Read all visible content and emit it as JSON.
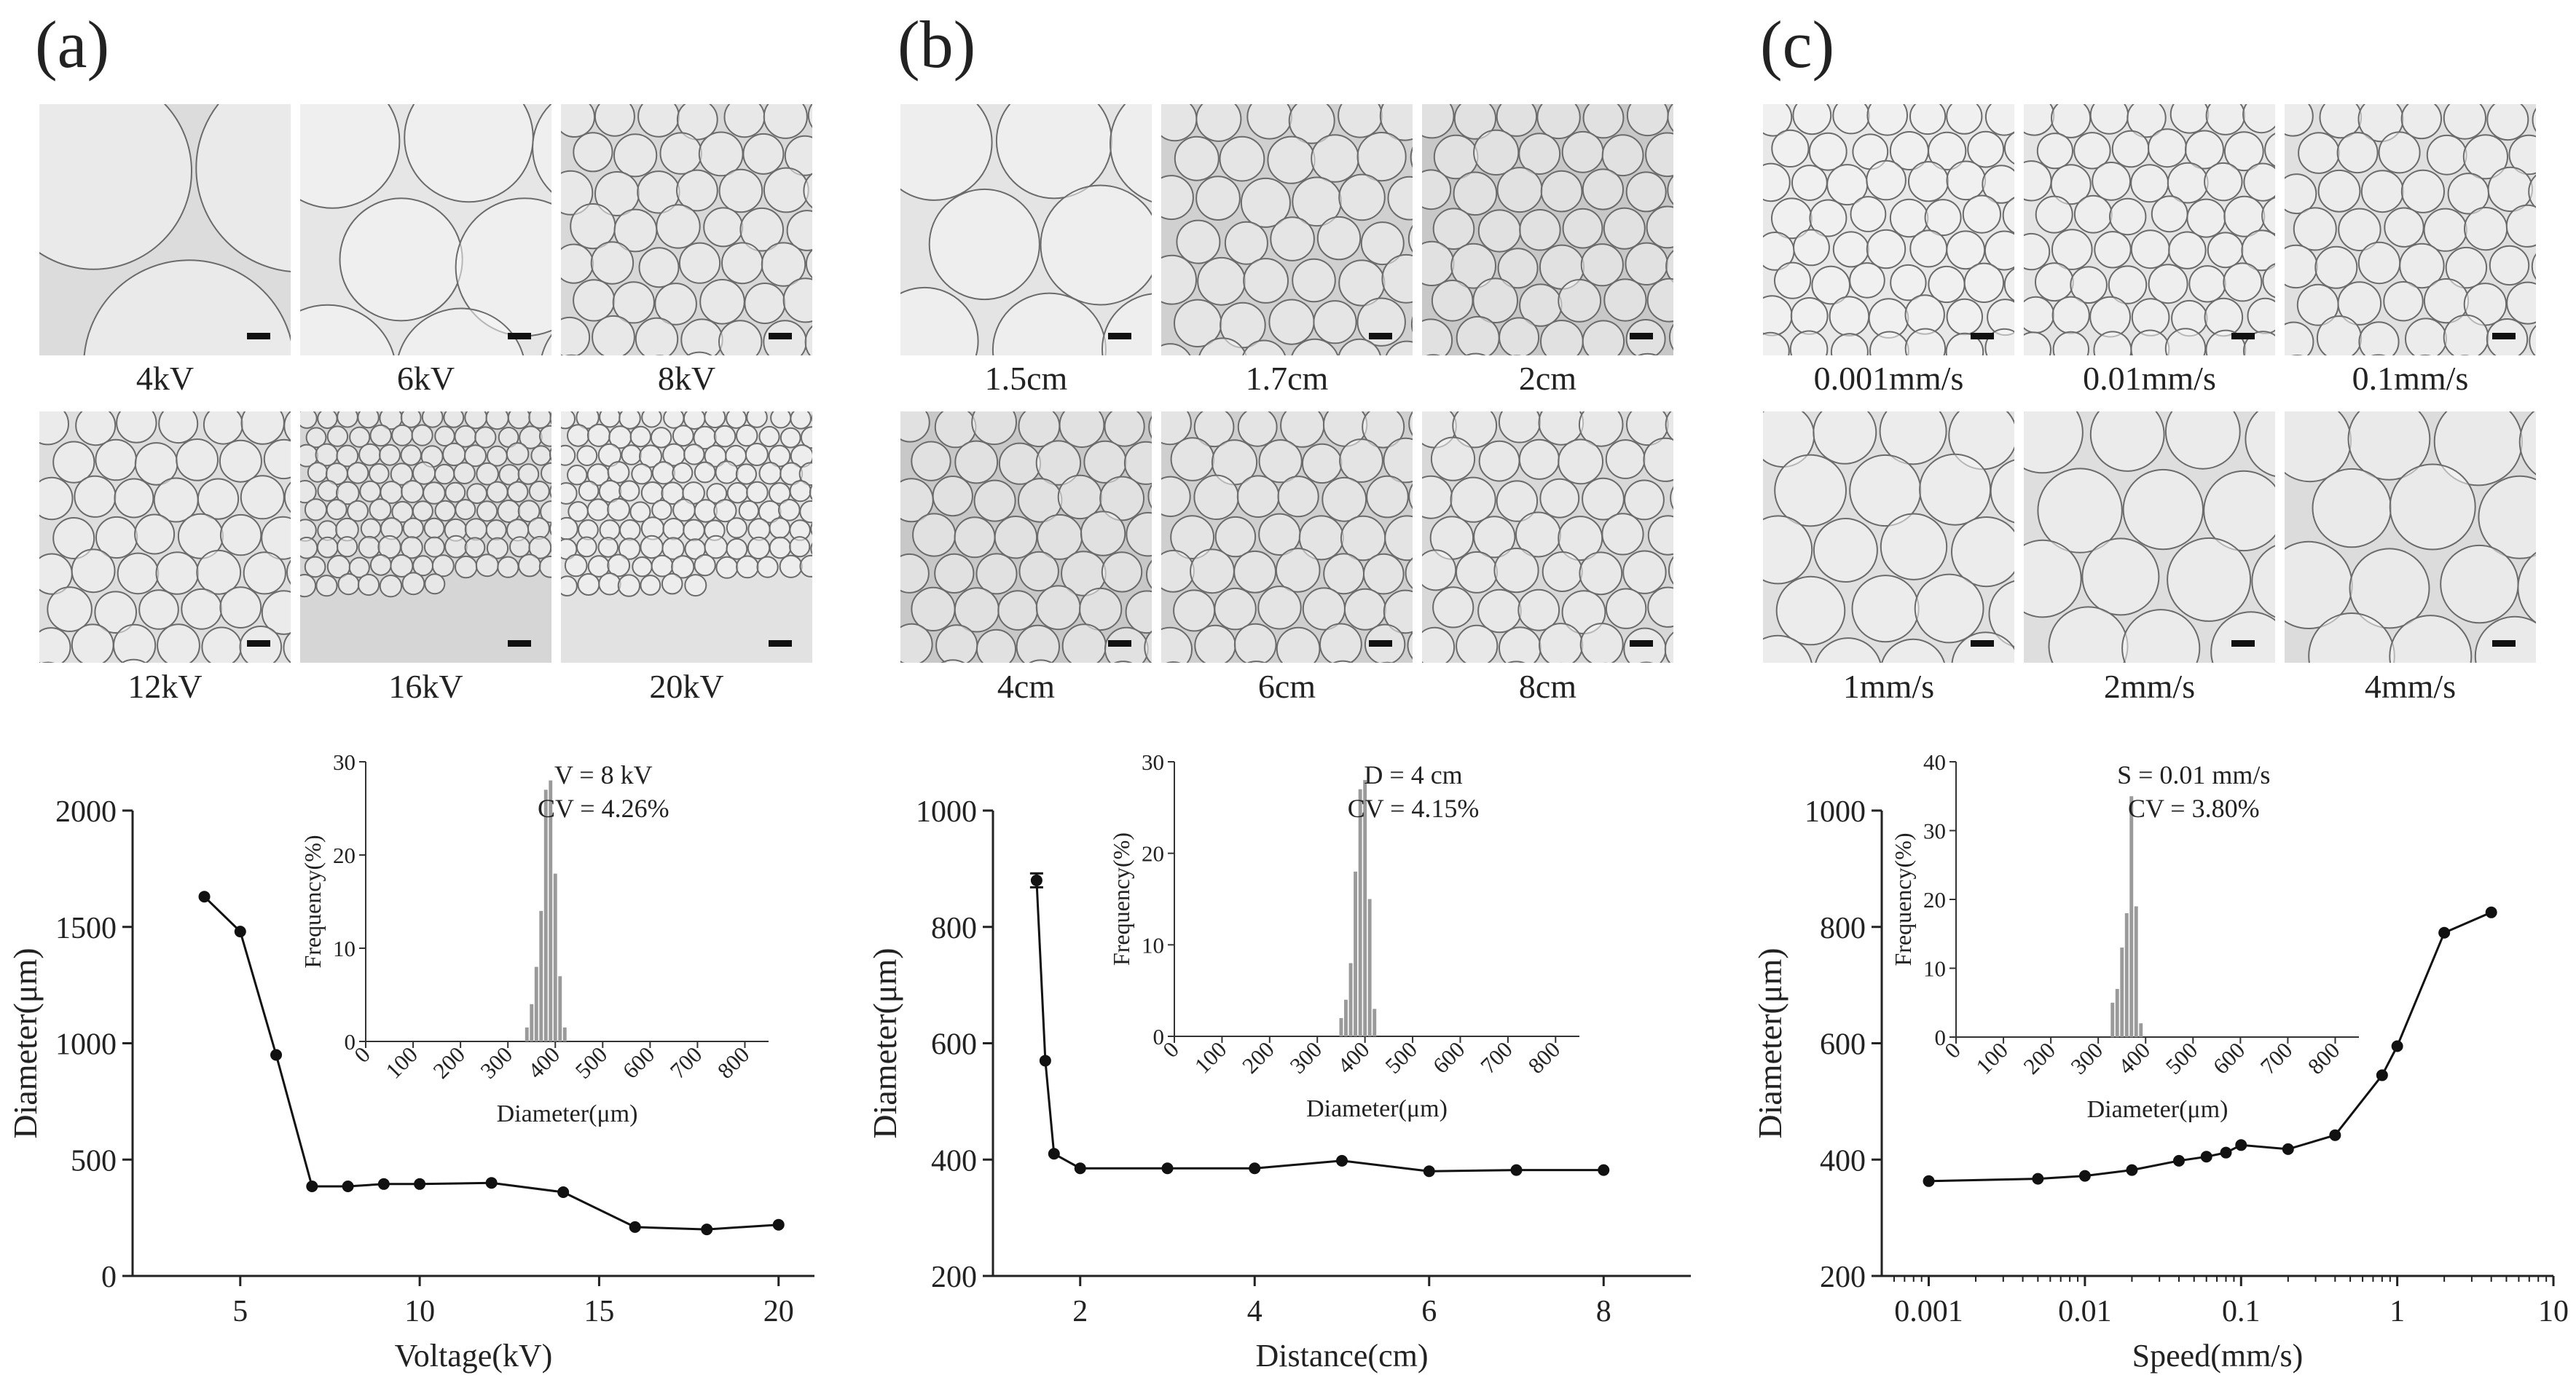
{
  "panels": [
    {
      "label": "(a)",
      "images": [
        {
          "caption": "4kV",
          "size": 1.0,
          "tone": "#dcdcdc"
        },
        {
          "caption": "6kV",
          "size": 0.62,
          "tone": "#e6e6e6"
        },
        {
          "caption": "8kV",
          "size": 0.2,
          "tone": "#d8d8d8"
        },
        {
          "caption": "12kV",
          "size": 0.2,
          "tone": "#dedede"
        },
        {
          "caption": "16kV",
          "size": 0.1,
          "tone": "#d6d6d6"
        },
        {
          "caption": "20kV",
          "size": 0.1,
          "tone": "#e2e2e2"
        }
      ]
    },
    {
      "label": "(b)",
      "images": [
        {
          "caption": "1.5cm",
          "size": 0.55,
          "tone": "#e4e4e4"
        },
        {
          "caption": "1.7cm",
          "size": 0.22,
          "tone": "#d0d0d0"
        },
        {
          "caption": "2cm",
          "size": 0.2,
          "tone": "#c8c8c8"
        },
        {
          "caption": "4cm",
          "size": 0.2,
          "tone": "#c8c8c8"
        },
        {
          "caption": "6cm",
          "size": 0.2,
          "tone": "#cfcfcf"
        },
        {
          "caption": "8cm",
          "size": 0.2,
          "tone": "#d8d8d8"
        }
      ]
    },
    {
      "label": "(c)",
      "images": [
        {
          "caption": "0.001mm/s",
          "size": 0.18,
          "tone": "#e8e8e8"
        },
        {
          "caption": "0.01mm/s",
          "size": 0.18,
          "tone": "#e4e4e4"
        },
        {
          "caption": "0.1mm/s",
          "size": 0.2,
          "tone": "#e0e0e0"
        },
        {
          "caption": "1mm/s",
          "size": 0.32,
          "tone": "#e0e0e0"
        },
        {
          "caption": "2mm/s",
          "size": 0.38,
          "tone": "#dedede"
        },
        {
          "caption": "4mm/s",
          "size": 0.4,
          "tone": "#dcdcdc"
        }
      ]
    }
  ],
  "chart_data": [
    {
      "type": "line",
      "xlabel": "Voltage(kV)",
      "ylabel": "Diameter(μm)",
      "xlim": [
        2,
        21
      ],
      "ylim": [
        0,
        2000
      ],
      "xticks": [
        5,
        10,
        15,
        20
      ],
      "yticks": [
        0,
        500,
        1000,
        1500,
        2000
      ],
      "x": [
        4,
        5,
        6,
        7,
        8,
        9,
        10,
        12,
        14,
        16,
        18,
        20
      ],
      "y": [
        1630,
        1480,
        950,
        385,
        385,
        395,
        395,
        400,
        360,
        210,
        200,
        220
      ],
      "inset": {
        "type": "bar",
        "xlabel": "Diameter(μm)",
        "ylabel": "Frequency(%)",
        "xlim": [
          0,
          850
        ],
        "ylim": [
          0,
          30
        ],
        "xticks": [
          0,
          100,
          200,
          300,
          400,
          500,
          600,
          700,
          800
        ],
        "yticks": [
          0,
          10,
          20,
          30
        ],
        "annotation": [
          "V = 8 kV",
          "CV = 4.26%"
        ],
        "x": [
          340,
          350,
          360,
          370,
          380,
          390,
          400,
          410,
          420
        ],
        "values": [
          1.5,
          4,
          8,
          14,
          27,
          28,
          18,
          7,
          1.5
        ]
      }
    },
    {
      "type": "line",
      "xlabel": "Distance(cm)",
      "ylabel": "Diameter(μm)",
      "xlim": [
        1,
        9
      ],
      "ylim": [
        200,
        1000
      ],
      "xticks": [
        2,
        4,
        6,
        8
      ],
      "yticks": [
        200,
        400,
        600,
        800,
        1000
      ],
      "x": [
        1.5,
        1.6,
        1.7,
        2,
        3,
        4,
        5,
        6,
        7,
        8
      ],
      "y": [
        880,
        570,
        410,
        385,
        385,
        385,
        398,
        380,
        382,
        382
      ],
      "error": [
        12,
        0,
        0,
        0,
        0,
        0,
        0,
        0,
        0,
        0
      ],
      "inset": {
        "type": "bar",
        "xlabel": "Diameter(μm)",
        "ylabel": "Frequency(%)",
        "xlim": [
          0,
          850
        ],
        "ylim": [
          0,
          30
        ],
        "xticks": [
          0,
          100,
          200,
          300,
          400,
          500,
          600,
          700,
          800
        ],
        "yticks": [
          0,
          10,
          20,
          30
        ],
        "annotation": [
          "D = 4 cm",
          "CV = 4.15%"
        ],
        "x": [
          350,
          360,
          370,
          380,
          390,
          400,
          410,
          420
        ],
        "values": [
          2,
          4,
          8,
          18,
          27,
          28,
          15,
          3
        ]
      }
    },
    {
      "type": "line",
      "xscale": "log",
      "xlabel": "Speed(mm/s)",
      "ylabel": "Diameter(μm)",
      "xlim": [
        0.0005,
        10
      ],
      "ylim": [
        200,
        1000
      ],
      "xticks": [
        0.001,
        0.01,
        0.1,
        1,
        10
      ],
      "xticklabels": [
        "0.001",
        "0.01",
        "0.1",
        "1",
        "10"
      ],
      "yticks": [
        200,
        400,
        600,
        800,
        1000
      ],
      "x": [
        0.001,
        0.005,
        0.01,
        0.02,
        0.04,
        0.06,
        0.08,
        0.1,
        0.2,
        0.4,
        0.8,
        1,
        2,
        4
      ],
      "y": [
        363,
        367,
        372,
        382,
        398,
        405,
        412,
        425,
        418,
        442,
        545,
        595,
        790,
        825
      ],
      "inset": {
        "type": "bar",
        "xlabel": "Diameter(μm)",
        "ylabel": "Frequency(%)",
        "xlim": [
          0,
          850
        ],
        "ylim": [
          0,
          40
        ],
        "xticks": [
          0,
          100,
          200,
          300,
          400,
          500,
          600,
          700,
          800
        ],
        "yticks": [
          0,
          10,
          20,
          30,
          40
        ],
        "annotation": [
          "S = 0.01 mm/s",
          "CV = 3.80%"
        ],
        "x": [
          330,
          340,
          350,
          360,
          370,
          380,
          390
        ],
        "values": [
          5,
          7,
          13,
          18,
          35,
          19,
          2
        ]
      }
    }
  ]
}
